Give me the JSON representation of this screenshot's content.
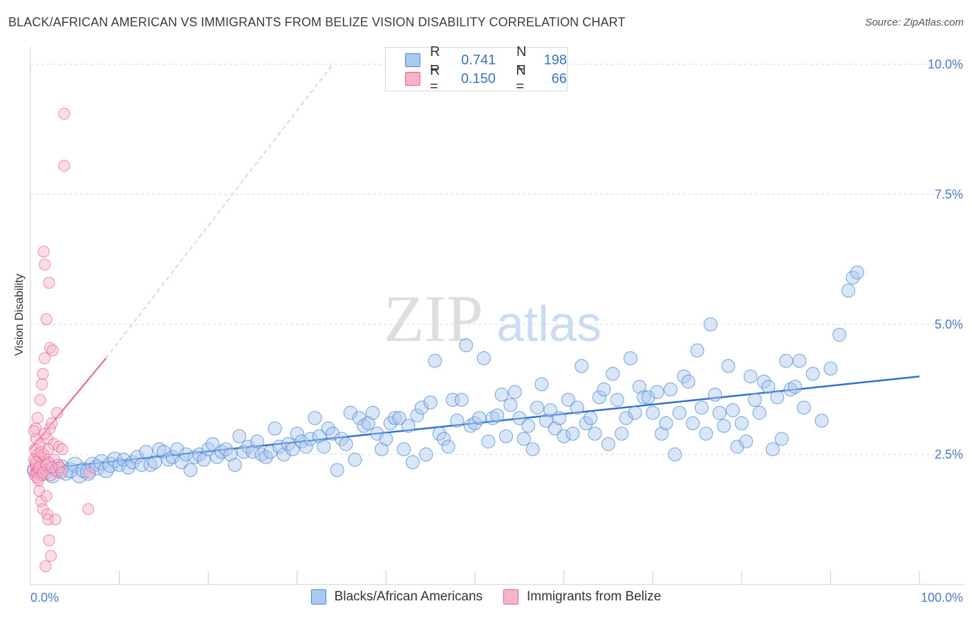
{
  "title": "BLACK/AFRICAN AMERICAN VS IMMIGRANTS FROM BELIZE VISION DISABILITY CORRELATION CHART",
  "source": "Source: ZipAtlas.com",
  "watermark": {
    "part1": "ZIP",
    "part2": "atlas"
  },
  "legend": {
    "rows": [
      {
        "r_label": "R =",
        "r_value": "0.741",
        "n_label": "N =",
        "n_value": "198"
      },
      {
        "r_label": "R =",
        "r_value": "0.150",
        "n_label": "N =",
        "n_value": "66"
      }
    ]
  },
  "colors": {
    "blue": "#4a86d4",
    "blue_fill": "#aac8f0",
    "blue_line": "#2f6fd0",
    "pink": "#e8608f",
    "pink_fill": "#f6b4c9",
    "pink_line": "#e86a94",
    "grid": "#d9d9d9",
    "tick_text": "#4a7cc7"
  },
  "chart_data": {
    "type": "scatter",
    "title": "BLACK/AFRICAN AMERICAN VS IMMIGRANTS FROM BELIZE VISION DISABILITY CORRELATION CHART",
    "xlabel": "",
    "ylabel": "Vision Disability",
    "xlim": [
      0,
      100
    ],
    "ylim": [
      0,
      10.2
    ],
    "x_tick_labels": [
      "0.0%",
      "100.0%"
    ],
    "y_ticks": [
      2.5,
      5.0,
      7.5,
      10.0
    ],
    "y_tick_labels": [
      "2.5%",
      "5.0%",
      "7.5%",
      "10.0%"
    ],
    "grid": true,
    "legend_position": "bottom",
    "series": [
      {
        "name": "Blacks/African Americans",
        "r": 0.741,
        "n": 198,
        "trend": {
          "x": [
            0,
            100
          ],
          "y": [
            2.2,
            4.0
          ],
          "style": "solid"
        },
        "points": [
          [
            0.5,
            2.2
          ],
          [
            1,
            2.25
          ],
          [
            1.5,
            2.15
          ],
          [
            2,
            2.3
          ],
          [
            2.5,
            2.1
          ],
          [
            3,
            2.2
          ],
          [
            3.5,
            2.25
          ],
          [
            4,
            2.15
          ],
          [
            4.5,
            2.2
          ],
          [
            5,
            2.3
          ],
          [
            5.5,
            2.1
          ],
          [
            6,
            2.2
          ],
          [
            6.5,
            2.15
          ],
          [
            7,
            2.3
          ],
          [
            7.5,
            2.25
          ],
          [
            8,
            2.35
          ],
          [
            8.5,
            2.2
          ],
          [
            9,
            2.3
          ],
          [
            9.5,
            2.4
          ],
          [
            10,
            2.3
          ],
          [
            10.5,
            2.4
          ],
          [
            11,
            2.25
          ],
          [
            11.5,
            2.35
          ],
          [
            12,
            2.45
          ],
          [
            12.5,
            2.3
          ],
          [
            13,
            2.55
          ],
          [
            13.5,
            2.3
          ],
          [
            14,
            2.35
          ],
          [
            14.5,
            2.6
          ],
          [
            15,
            2.55
          ],
          [
            15.5,
            2.4
          ],
          [
            16,
            2.45
          ],
          [
            16.5,
            2.6
          ],
          [
            17,
            2.35
          ],
          [
            17.5,
            2.5
          ],
          [
            18,
            2.2
          ],
          [
            18.5,
            2.45
          ],
          [
            19,
            2.5
          ],
          [
            19.5,
            2.4
          ],
          [
            20,
            2.6
          ],
          [
            20.5,
            2.7
          ],
          [
            21,
            2.45
          ],
          [
            21.5,
            2.55
          ],
          [
            22,
            2.6
          ],
          [
            22.5,
            2.5
          ],
          [
            23,
            2.3
          ],
          [
            23.5,
            2.85
          ],
          [
            24,
            2.55
          ],
          [
            24.5,
            2.65
          ],
          [
            25,
            2.55
          ],
          [
            25.5,
            2.75
          ],
          [
            26,
            2.5
          ],
          [
            26.5,
            2.45
          ],
          [
            27,
            2.55
          ],
          [
            27.5,
            3.0
          ],
          [
            28,
            2.65
          ],
          [
            28.5,
            2.5
          ],
          [
            29,
            2.7
          ],
          [
            29.5,
            2.6
          ],
          [
            30,
            2.9
          ],
          [
            30.5,
            2.75
          ],
          [
            31,
            2.65
          ],
          [
            31.5,
            2.8
          ],
          [
            32,
            3.2
          ],
          [
            32.5,
            2.85
          ],
          [
            33,
            2.65
          ],
          [
            33.5,
            3.0
          ],
          [
            34,
            2.9
          ],
          [
            34.5,
            2.2
          ],
          [
            35,
            2.8
          ],
          [
            35.5,
            2.7
          ],
          [
            36,
            3.3
          ],
          [
            36.5,
            2.4
          ],
          [
            37,
            3.2
          ],
          [
            37.5,
            3.05
          ],
          [
            38,
            3.1
          ],
          [
            38.5,
            3.3
          ],
          [
            39,
            2.9
          ],
          [
            39.5,
            2.6
          ],
          [
            40,
            2.8
          ],
          [
            40.5,
            3.1
          ],
          [
            41,
            3.2
          ],
          [
            41.5,
            3.2
          ],
          [
            42,
            2.6
          ],
          [
            42.5,
            3.05
          ],
          [
            43,
            2.35
          ],
          [
            43.5,
            3.25
          ],
          [
            44,
            3.4
          ],
          [
            44.5,
            2.5
          ],
          [
            45,
            3.5
          ],
          [
            45.5,
            4.3
          ],
          [
            46,
            2.9
          ],
          [
            46.5,
            2.8
          ],
          [
            47,
            2.65
          ],
          [
            47.5,
            3.55
          ],
          [
            48,
            3.15
          ],
          [
            48.5,
            3.55
          ],
          [
            49,
            4.6
          ],
          [
            49.5,
            3.05
          ],
          [
            50,
            3.1
          ],
          [
            50.5,
            3.2
          ],
          [
            51,
            4.35
          ],
          [
            51.5,
            2.75
          ],
          [
            52,
            3.2
          ],
          [
            52.5,
            3.25
          ],
          [
            53,
            3.65
          ],
          [
            53.5,
            2.85
          ],
          [
            54,
            3.45
          ],
          [
            54.5,
            3.7
          ],
          [
            55,
            3.2
          ],
          [
            55.5,
            2.8
          ],
          [
            56,
            3.05
          ],
          [
            56.5,
            2.6
          ],
          [
            57,
            3.4
          ],
          [
            57.5,
            3.85
          ],
          [
            58,
            3.15
          ],
          [
            58.5,
            3.35
          ],
          [
            59,
            3.0
          ],
          [
            59.5,
            3.2
          ],
          [
            60,
            2.85
          ],
          [
            60.5,
            3.55
          ],
          [
            61,
            2.9
          ],
          [
            61.5,
            3.4
          ],
          [
            62,
            4.2
          ],
          [
            62.5,
            3.1
          ],
          [
            63,
            3.2
          ],
          [
            63.5,
            2.9
          ],
          [
            64,
            3.6
          ],
          [
            64.5,
            3.75
          ],
          [
            65,
            2.7
          ],
          [
            65.5,
            4.05
          ],
          [
            66,
            3.55
          ],
          [
            66.5,
            2.9
          ],
          [
            67,
            3.2
          ],
          [
            67.5,
            4.35
          ],
          [
            68,
            3.3
          ],
          [
            68.5,
            3.8
          ],
          [
            69,
            3.6
          ],
          [
            69.5,
            3.6
          ],
          [
            70,
            3.3
          ],
          [
            70.5,
            3.7
          ],
          [
            71,
            2.9
          ],
          [
            71.5,
            3.1
          ],
          [
            72,
            3.75
          ],
          [
            72.5,
            2.5
          ],
          [
            73,
            3.3
          ],
          [
            73.5,
            4.0
          ],
          [
            74,
            3.9
          ],
          [
            74.5,
            3.1
          ],
          [
            75,
            4.5
          ],
          [
            75.5,
            3.4
          ],
          [
            76,
            2.9
          ],
          [
            76.5,
            5.0
          ],
          [
            77,
            3.65
          ],
          [
            77.5,
            3.3
          ],
          [
            78,
            3.05
          ],
          [
            78.5,
            4.2
          ],
          [
            79,
            3.35
          ],
          [
            79.5,
            2.65
          ],
          [
            80,
            3.1
          ],
          [
            80.5,
            2.75
          ],
          [
            81,
            4.0
          ],
          [
            81.5,
            3.55
          ],
          [
            82,
            3.3
          ],
          [
            82.5,
            3.9
          ],
          [
            83,
            3.8
          ],
          [
            83.5,
            2.6
          ],
          [
            84,
            3.6
          ],
          [
            84.5,
            2.8
          ],
          [
            85,
            4.3
          ],
          [
            85.5,
            3.75
          ],
          [
            86,
            3.8
          ],
          [
            86.5,
            4.3
          ],
          [
            87,
            3.4
          ],
          [
            88,
            4.05
          ],
          [
            89,
            3.15
          ],
          [
            90,
            4.15
          ],
          [
            91,
            4.8
          ],
          [
            92,
            5.65
          ],
          [
            92.5,
            5.9
          ],
          [
            93,
            6.0
          ]
        ]
      },
      {
        "name": "Immigrants from Belize",
        "r": 0.15,
        "n": 66,
        "trend": {
          "x": [
            0,
            8.5
          ],
          "y": [
            2.6,
            4.35
          ],
          "style": "solid",
          "extension": {
            "x": [
              8.5,
              34
            ],
            "y": [
              4.35,
              10.0
            ],
            "style": "dashed"
          }
        },
        "points": [
          [
            0.3,
            2.2
          ],
          [
            0.4,
            2.4
          ],
          [
            0.5,
            2.1
          ],
          [
            0.5,
            2.6
          ],
          [
            0.6,
            2.3
          ],
          [
            0.6,
            3.0
          ],
          [
            0.7,
            2.15
          ],
          [
            0.7,
            2.8
          ],
          [
            0.8,
            2.5
          ],
          [
            0.8,
            3.2
          ],
          [
            0.9,
            2.2
          ],
          [
            0.9,
            2.0
          ],
          [
            1.0,
            2.45
          ],
          [
            1.0,
            1.8
          ],
          [
            1.1,
            2.7
          ],
          [
            1.1,
            3.55
          ],
          [
            1.2,
            2.3
          ],
          [
            1.2,
            1.6
          ],
          [
            1.3,
            2.1
          ],
          [
            1.3,
            3.85
          ],
          [
            1.4,
            4.05
          ],
          [
            1.4,
            1.45
          ],
          [
            1.5,
            2.5
          ],
          [
            1.5,
            6.4
          ],
          [
            1.6,
            6.15
          ],
          [
            1.6,
            4.35
          ],
          [
            1.7,
            2.2
          ],
          [
            1.7,
            0.35
          ],
          [
            1.8,
            5.1
          ],
          [
            1.8,
            1.7
          ],
          [
            1.9,
            2.8
          ],
          [
            1.9,
            1.35
          ],
          [
            2.0,
            2.35
          ],
          [
            2.0,
            1.25
          ],
          [
            2.1,
            5.8
          ],
          [
            2.1,
            0.85
          ],
          [
            2.2,
            4.55
          ],
          [
            2.2,
            3.0
          ],
          [
            2.3,
            2.1
          ],
          [
            2.3,
            0.55
          ],
          [
            2.4,
            3.1
          ],
          [
            2.5,
            4.5
          ],
          [
            2.6,
            2.7
          ],
          [
            2.7,
            2.4
          ],
          [
            2.8,
            1.25
          ],
          [
            2.9,
            2.2
          ],
          [
            3.0,
            3.3
          ],
          [
            3.1,
            2.3
          ],
          [
            3.2,
            2.65
          ],
          [
            3.3,
            2.25
          ],
          [
            3.5,
            2.15
          ],
          [
            3.6,
            2.6
          ],
          [
            3.8,
            9.05
          ],
          [
            3.8,
            8.05
          ],
          [
            0.4,
            2.95
          ],
          [
            0.6,
            2.35
          ],
          [
            0.8,
            2.05
          ],
          [
            1.0,
            2.25
          ],
          [
            1.2,
            2.55
          ],
          [
            1.4,
            2.15
          ],
          [
            1.6,
            2.9
          ],
          [
            1.8,
            2.3
          ],
          [
            2.0,
            2.6
          ],
          [
            2.4,
            2.25
          ],
          [
            6.6,
            2.15
          ],
          [
            6.5,
            1.45
          ]
        ]
      }
    ]
  },
  "bottom_legend": [
    {
      "label": "Blacks/African Americans"
    },
    {
      "label": "Immigrants from Belize"
    }
  ]
}
